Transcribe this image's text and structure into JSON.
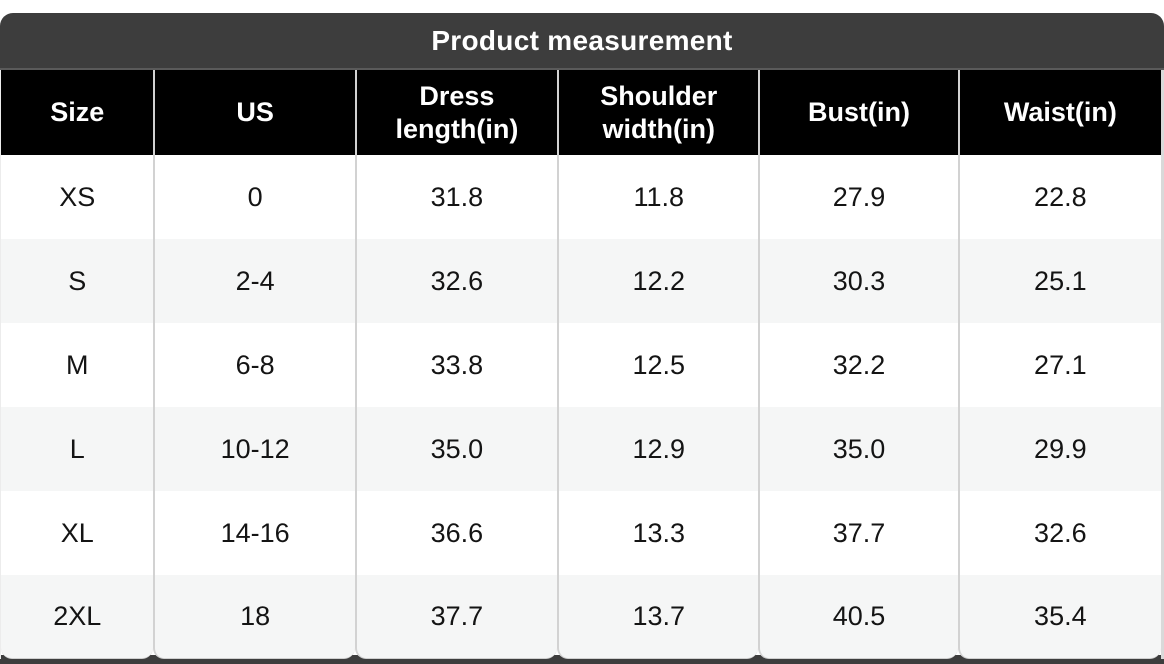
{
  "card": {
    "title": "Product measurement"
  },
  "table": {
    "columns": [
      "Size",
      "US",
      "Dress length(in)",
      "Shoulder width(in)",
      "Bust(in)",
      "Waist(in)"
    ],
    "rows": [
      [
        "XS",
        "0",
        "31.8",
        "11.8",
        "27.9",
        "22.8"
      ],
      [
        "S",
        "2-4",
        "32.6",
        "12.2",
        "30.3",
        "25.1"
      ],
      [
        "M",
        "6-8",
        "33.8",
        "12.5",
        "32.2",
        "27.1"
      ],
      [
        "L",
        "10-12",
        "35.0",
        "12.9",
        "35.0",
        "29.9"
      ],
      [
        "XL",
        "14-16",
        "36.6",
        "13.3",
        "37.7",
        "32.6"
      ],
      [
        "2XL",
        "18",
        "37.7",
        "13.7",
        "40.5",
        "35.4"
      ]
    ]
  },
  "colors": {
    "title_bar_bg": "#3d3d3d",
    "header_bg": "#000000",
    "row_bg": "#ffffff",
    "row_alt_bg": "#f5f6f6",
    "separator": "#d2d2d2",
    "bottom_strip_bg": "#3d3d3d",
    "title_text": "#ffffff",
    "header_text": "#ffffff",
    "body_text": "#141414"
  }
}
